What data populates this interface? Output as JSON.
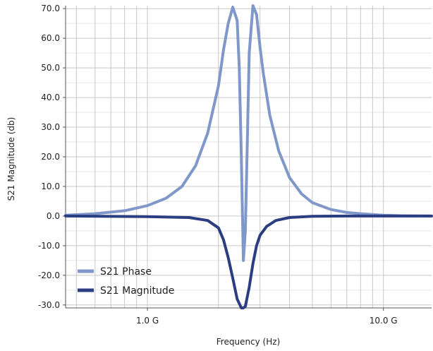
{
  "chart_data": {
    "type": "line",
    "title": "",
    "xlabel": "Frequency (Hz)",
    "ylabel": "S21 Magnitude (db)",
    "x_scale": "log",
    "xlim": [
      0.45,
      16
    ],
    "ylim": [
      -31,
      71
    ],
    "grid": true,
    "legend_position": "bottom-left",
    "x_ticks": [
      {
        "value": 1.0,
        "label": "1.0 G"
      },
      {
        "value": 10.0,
        "label": "10.0 G"
      }
    ],
    "y_ticks": [
      {
        "value": 70,
        "label": "70.0"
      },
      {
        "value": 60,
        "label": "60.0"
      },
      {
        "value": 50,
        "label": "50.0"
      },
      {
        "value": 40,
        "label": "40.0"
      },
      {
        "value": 30,
        "label": "30.0"
      },
      {
        "value": 20,
        "label": "20.0"
      },
      {
        "value": 10,
        "label": "10.0"
      },
      {
        "value": 0,
        "label": "0.0"
      },
      {
        "value": -10,
        "label": "-10.0"
      },
      {
        "value": -20,
        "label": "-20.0"
      },
      {
        "value": -30,
        "label": "-30.0"
      }
    ],
    "series": [
      {
        "name": "S21 Phase",
        "color": "#7f97c9",
        "x": [
          0.45,
          0.6,
          0.8,
          1.0,
          1.2,
          1.4,
          1.6,
          1.8,
          2.0,
          2.1,
          2.2,
          2.3,
          2.4,
          2.45,
          2.5,
          2.55,
          2.6,
          2.65,
          2.7,
          2.8,
          2.9,
          3.0,
          3.1,
          3.3,
          3.6,
          4.0,
          4.5,
          5.0,
          6.0,
          7.0,
          8.0,
          10.0,
          12.0,
          16.0
        ],
        "y": [
          0.3,
          0.8,
          1.8,
          3.5,
          6.0,
          10.0,
          17.0,
          28.0,
          44.0,
          56.0,
          65.0,
          70.5,
          66.0,
          50.0,
          20.0,
          -15.0,
          -5.0,
          25.0,
          55.0,
          71.0,
          68.0,
          57.0,
          48.0,
          34.0,
          22.0,
          13.0,
          7.5,
          4.5,
          2.2,
          1.2,
          0.8,
          0.3,
          0.1,
          0.0
        ]
      },
      {
        "name": "S21 Magnitude",
        "color": "#2b3e82",
        "x": [
          0.45,
          1.0,
          1.5,
          1.8,
          2.0,
          2.1,
          2.2,
          2.3,
          2.4,
          2.5,
          2.55,
          2.6,
          2.7,
          2.8,
          2.9,
          3.0,
          3.2,
          3.5,
          4.0,
          5.0,
          7.0,
          10.0,
          16.0
        ],
        "y": [
          0.0,
          -0.2,
          -0.5,
          -1.5,
          -4.0,
          -8.0,
          -14.0,
          -21.0,
          -28.0,
          -31.0,
          -31.0,
          -30.5,
          -24.0,
          -16.0,
          -10.0,
          -6.5,
          -3.5,
          -1.5,
          -0.5,
          -0.1,
          0.0,
          0.0,
          0.0
        ]
      }
    ]
  }
}
